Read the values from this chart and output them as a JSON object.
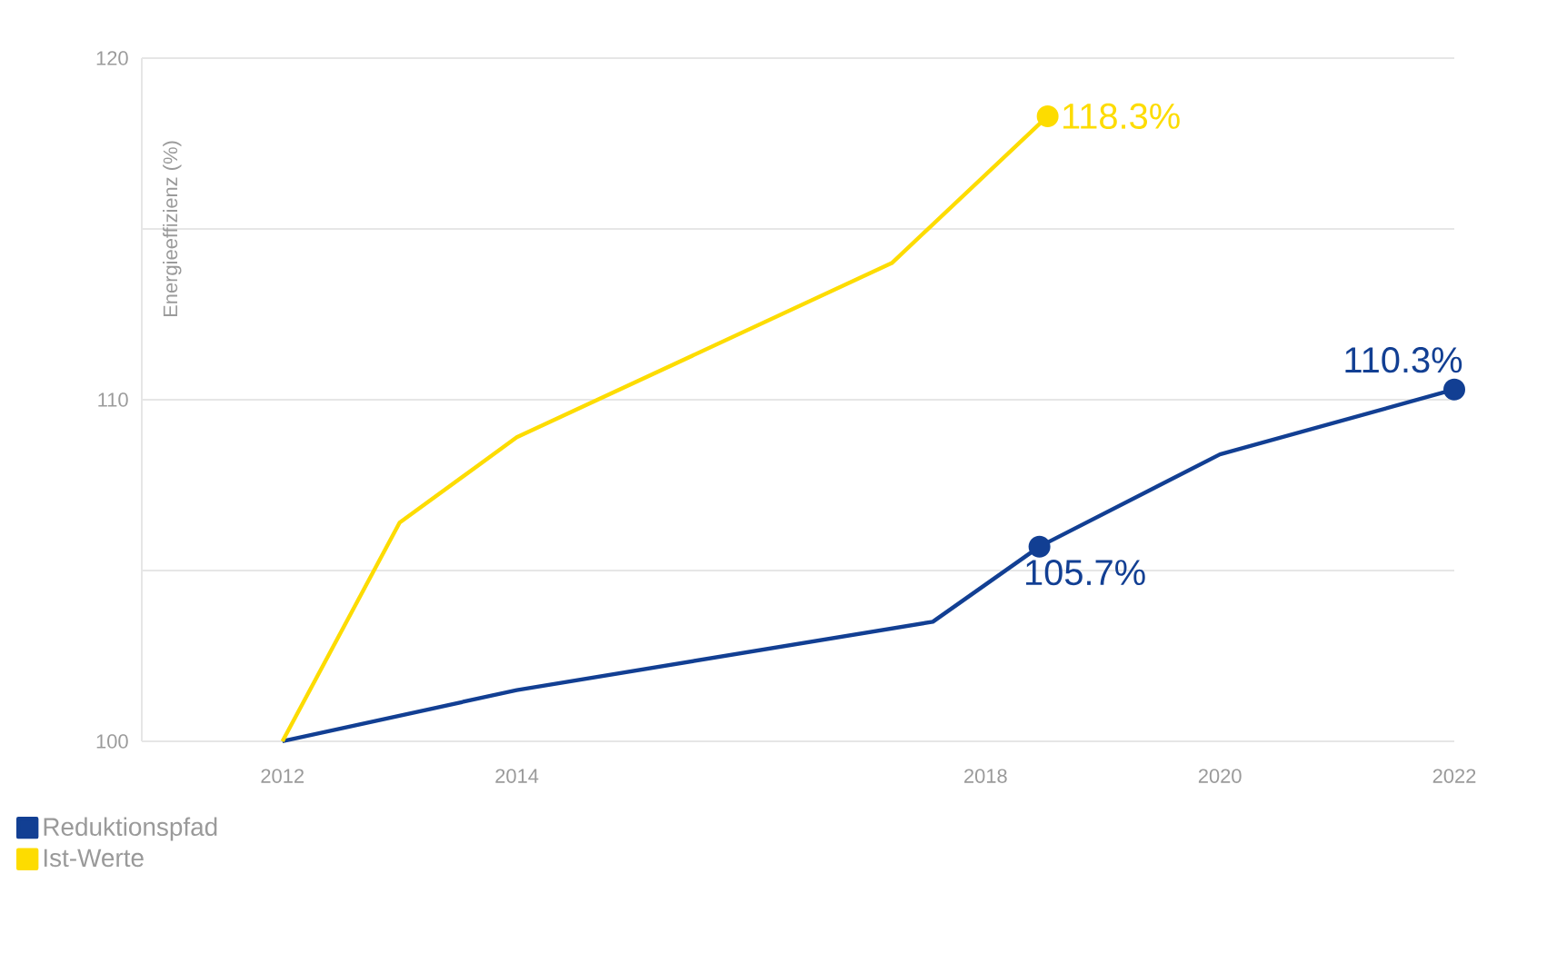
{
  "chart_data": {
    "type": "line",
    "ylabel": "Energieeffizienz (%)",
    "xlim": [
      2010.8,
      2022
    ],
    "xticks": [
      2012,
      2014,
      2018,
      2020,
      2022
    ],
    "ylim": [
      100,
      120
    ],
    "yticks": [
      100,
      {
        "value": 105,
        "label": null
      },
      110,
      {
        "value": 115,
        "label": null
      },
      120
    ],
    "grid": "y",
    "legend": "bottom left",
    "line_style": "solid",
    "series": [
      {
        "name": "Reduktionspfad",
        "color": "#123f93",
        "x": [
          2012,
          2014,
          2017.55,
          2018.46,
          2020,
          2022
        ],
        "values": [
          100,
          101.5,
          103.5,
          105.7,
          108.4,
          110.3
        ],
        "value_labels": [
          null,
          null,
          null,
          "105.7%",
          null,
          "110.3%"
        ]
      },
      {
        "name": "Ist-Werte",
        "color": "#fddc00",
        "x": [
          2012,
          2013,
          2014,
          2017.2,
          2018.53
        ],
        "values": [
          100,
          106.4,
          108.9,
          114.0,
          118.3
        ],
        "value_labels": [
          null,
          null,
          null,
          null,
          "118.3%"
        ]
      }
    ]
  }
}
